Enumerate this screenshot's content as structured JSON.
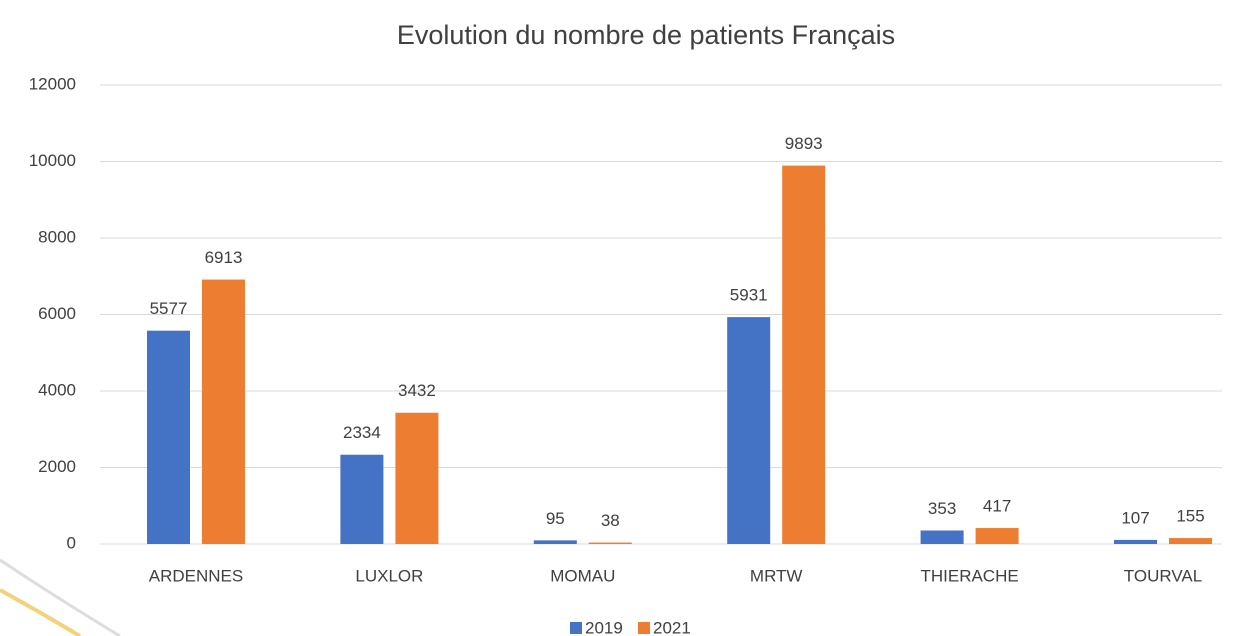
{
  "chart_data": {
    "type": "bar",
    "title": "Evolution du nombre de patients Français",
    "categories": [
      "ARDENNES",
      "LUXLOR",
      "MOMAU",
      "MRTW",
      "THIERACHE",
      "TOURVAL"
    ],
    "series": [
      {
        "name": "2019",
        "color": "#4472c4",
        "values": [
          5577,
          2334,
          95,
          5931,
          353,
          107
        ]
      },
      {
        "name": "2021",
        "color": "#ed7d31",
        "values": [
          6913,
          3432,
          38,
          9893,
          417,
          155
        ]
      }
    ],
    "ylim": [
      0,
      12000
    ],
    "yticks": [
      0,
      2000,
      4000,
      6000,
      8000,
      10000,
      12000
    ],
    "grid": true,
    "legend": "bottom"
  }
}
